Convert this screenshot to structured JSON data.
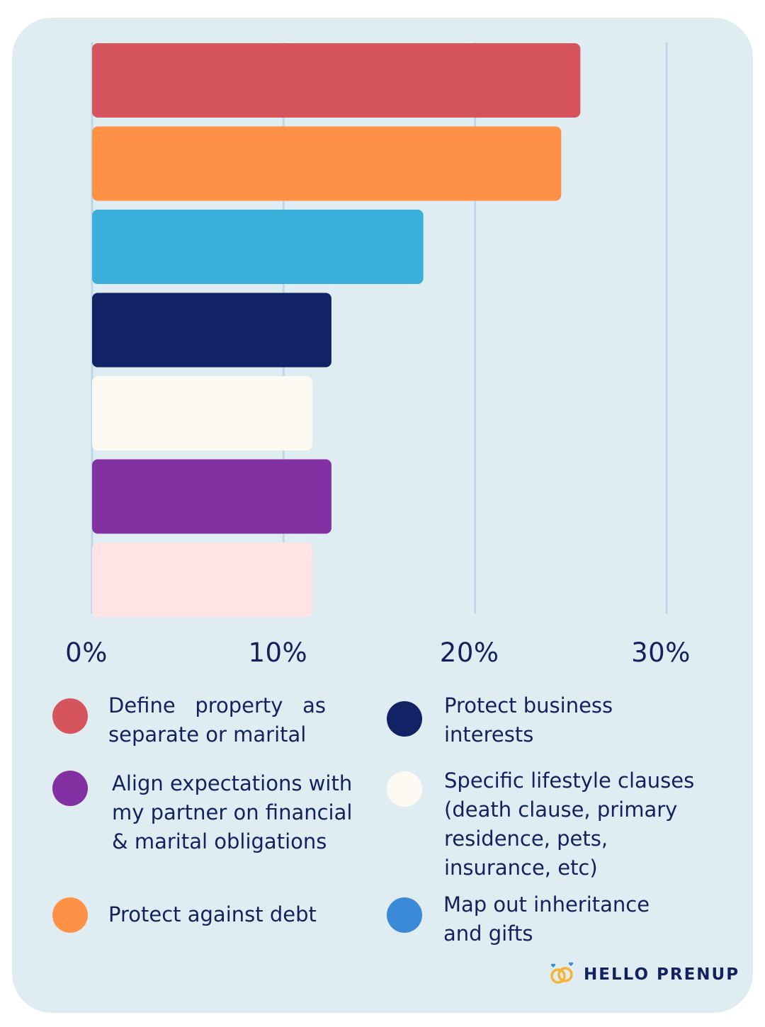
{
  "chart_data": {
    "type": "bar",
    "orientation": "horizontal",
    "categories": [
      "Define property as separate or marital",
      "Protect against debt",
      "Map out inheritance and gifts",
      "Protect business interests",
      "Specific lifestyle clauses (death clause, primary residence, pets, insurance, etc)",
      "Align expectations with my partner on financial & marital obligations",
      ""
    ],
    "values": [
      25.5,
      24.5,
      17.3,
      12.5,
      11.5,
      12.5,
      11.5
    ],
    "colors": [
      "#d6545c",
      "#ff9147",
      "#3aafdb",
      "#112365",
      "#fdf9f3",
      "#8330a2",
      "#ffe3e5"
    ],
    "xlim": [
      0,
      30
    ],
    "xticks": [
      "0%",
      "10%",
      "20%",
      "30%"
    ],
    "grid": true,
    "legend_position": "bottom"
  },
  "legend": [
    {
      "label": "Define   property   as separate or marital",
      "color": "#d6545c"
    },
    {
      "label": "Protect business interests",
      "color": "#112365"
    },
    {
      "label": "Align expectations with my partner on financial & marital obligations",
      "color": "#8330a2"
    },
    {
      "label": "Specific lifestyle clauses (death clause, primary residence, pets, insurance, etc)",
      "color": "#fdf9f3"
    },
    {
      "label": "Protect against debt",
      "color": "#ff9147"
    },
    {
      "label": "Map out inheritance and gifts",
      "color": "#3b8ad8"
    }
  ],
  "brand": {
    "name": "HELLO PRENUP",
    "icon": "rings-icon"
  }
}
